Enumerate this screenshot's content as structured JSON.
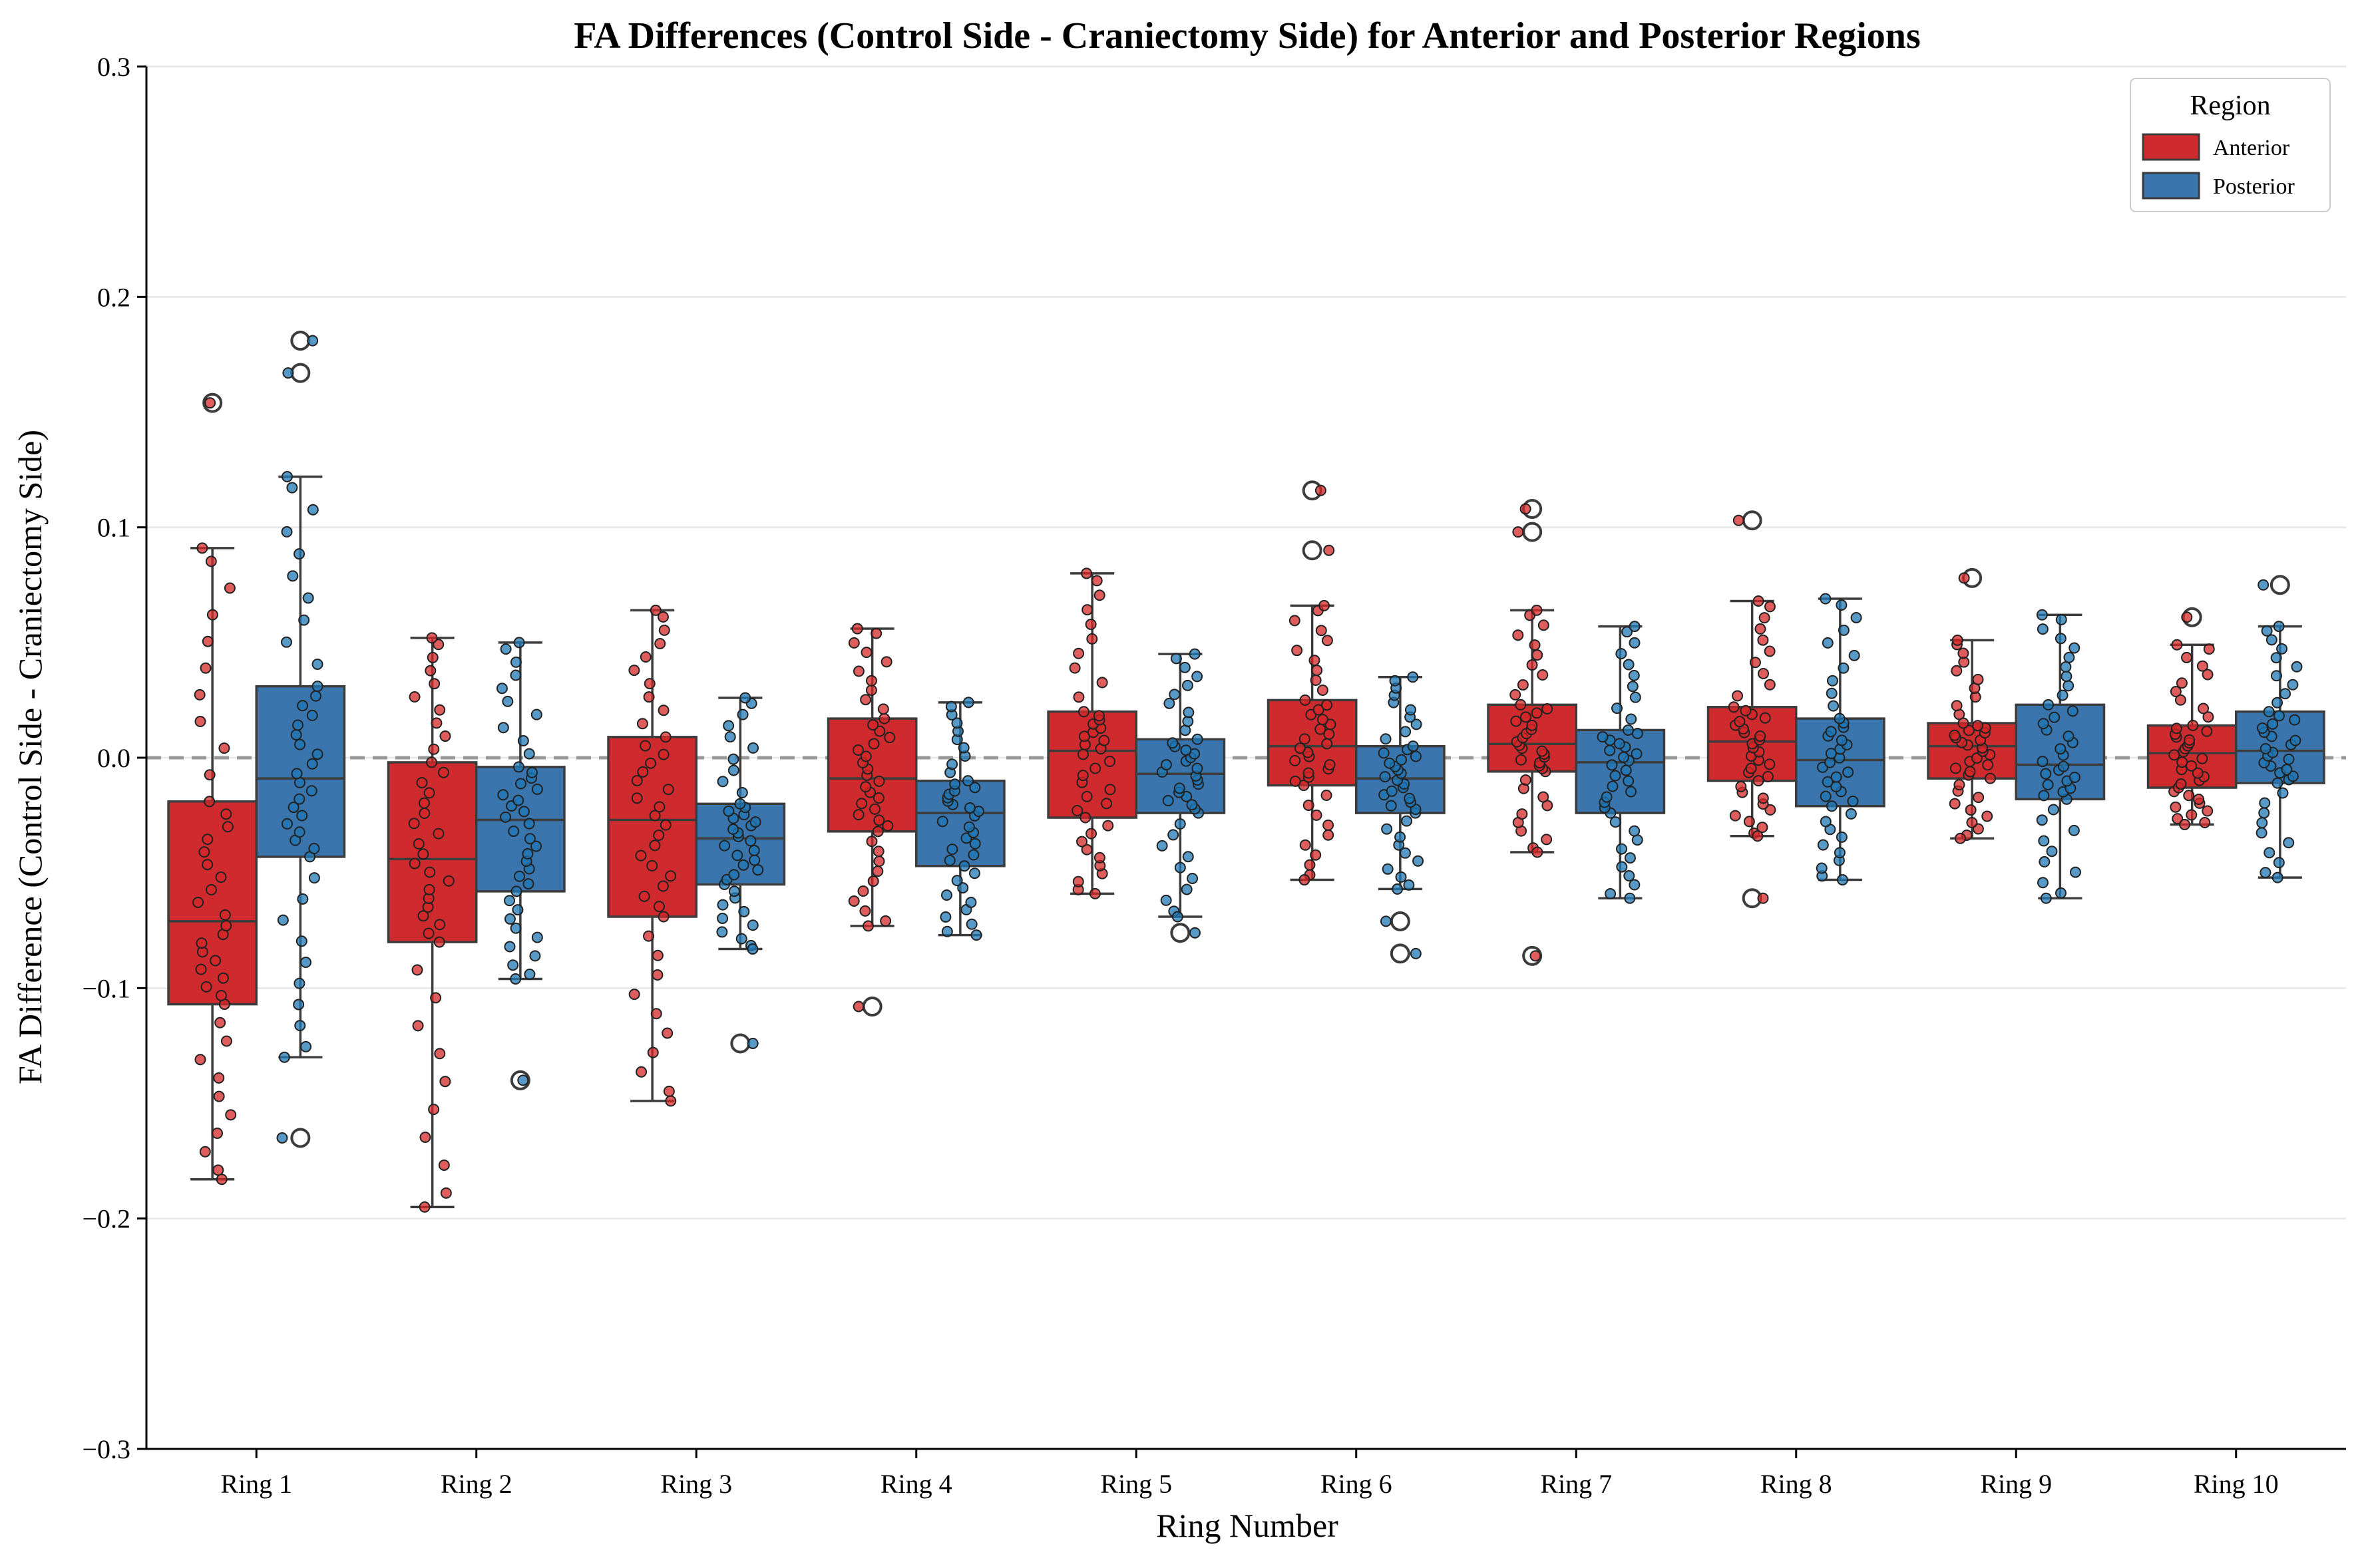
{
  "chart_data": {
    "type": "box",
    "title": "FA Differences (Control Side - Craniectomy Side) for Anterior and Posterior Regions",
    "xlabel": "Ring Number",
    "ylabel": "FA Difference (Control Side - Craniectomy Side)",
    "ylim": [
      -0.3,
      0.3
    ],
    "yticks": [
      -0.3,
      -0.2,
      -0.1,
      0.0,
      0.1,
      0.2,
      0.3
    ],
    "ytick_labels": [
      "−0.3",
      "−0.2",
      "−0.1",
      "0.0",
      "0.1",
      "0.2",
      "0.3"
    ],
    "grid": "horizontal",
    "reference_line": 0.0,
    "categories": [
      "Ring 1",
      "Ring 2",
      "Ring 3",
      "Ring 4",
      "Ring 5",
      "Ring 6",
      "Ring 7",
      "Ring 8",
      "Ring 9",
      "Ring 10"
    ],
    "legend": {
      "title": "Region",
      "position": "top-right"
    },
    "series": [
      {
        "name": "Anterior",
        "color": "#d62728",
        "box_color": "#cf2a2e",
        "boxes": [
          {
            "whislo": -0.183,
            "q1": -0.107,
            "med": -0.071,
            "q3": -0.019,
            "whishi": 0.091,
            "fliers": [
              0.154
            ]
          },
          {
            "whislo": -0.195,
            "q1": -0.08,
            "med": -0.044,
            "q3": -0.002,
            "whishi": 0.052,
            "fliers": []
          },
          {
            "whislo": -0.149,
            "q1": -0.069,
            "med": -0.027,
            "q3": 0.009,
            "whishi": 0.064,
            "fliers": []
          },
          {
            "whislo": -0.073,
            "q1": -0.032,
            "med": -0.009,
            "q3": 0.017,
            "whishi": 0.056,
            "fliers": [
              -0.108
            ]
          },
          {
            "whislo": -0.059,
            "q1": -0.026,
            "med": 0.003,
            "q3": 0.02,
            "whishi": 0.08,
            "fliers": []
          },
          {
            "whislo": -0.053,
            "q1": -0.012,
            "med": 0.005,
            "q3": 0.025,
            "whishi": 0.066,
            "fliers": [
              0.116,
              0.09
            ]
          },
          {
            "whislo": -0.041,
            "q1": -0.006,
            "med": 0.006,
            "q3": 0.023,
            "whishi": 0.064,
            "fliers": [
              0.108,
              0.098,
              -0.086
            ]
          },
          {
            "whislo": -0.034,
            "q1": -0.01,
            "med": 0.007,
            "q3": 0.022,
            "whishi": 0.068,
            "fliers": [
              0.103,
              -0.061
            ]
          },
          {
            "whislo": -0.035,
            "q1": -0.009,
            "med": 0.005,
            "q3": 0.015,
            "whishi": 0.051,
            "fliers": [
              0.078
            ]
          },
          {
            "whislo": -0.029,
            "q1": -0.013,
            "med": 0.002,
            "q3": 0.014,
            "whishi": 0.049,
            "fliers": [
              0.061
            ]
          }
        ]
      },
      {
        "name": "Posterior",
        "color": "#1f77b4",
        "box_color": "#3a75ae",
        "boxes": [
          {
            "whislo": -0.13,
            "q1": -0.043,
            "med": -0.009,
            "q3": 0.031,
            "whishi": 0.122,
            "fliers": [
              0.181,
              0.167,
              -0.165
            ]
          },
          {
            "whislo": -0.096,
            "q1": -0.058,
            "med": -0.027,
            "q3": -0.004,
            "whishi": 0.05,
            "fliers": [
              -0.14
            ]
          },
          {
            "whislo": -0.083,
            "q1": -0.055,
            "med": -0.035,
            "q3": -0.02,
            "whishi": 0.026,
            "fliers": [
              -0.124
            ]
          },
          {
            "whislo": -0.077,
            "q1": -0.047,
            "med": -0.024,
            "q3": -0.01,
            "whishi": 0.024,
            "fliers": []
          },
          {
            "whislo": -0.069,
            "q1": -0.024,
            "med": -0.007,
            "q3": 0.008,
            "whishi": 0.045,
            "fliers": [
              -0.076
            ]
          },
          {
            "whislo": -0.057,
            "q1": -0.024,
            "med": -0.009,
            "q3": 0.005,
            "whishi": 0.035,
            "fliers": [
              -0.071,
              -0.085
            ]
          },
          {
            "whislo": -0.061,
            "q1": -0.024,
            "med": -0.002,
            "q3": 0.012,
            "whishi": 0.057,
            "fliers": []
          },
          {
            "whislo": -0.053,
            "q1": -0.021,
            "med": -0.001,
            "q3": 0.017,
            "whishi": 0.069,
            "fliers": []
          },
          {
            "whislo": -0.061,
            "q1": -0.018,
            "med": -0.003,
            "q3": 0.023,
            "whishi": 0.062,
            "fliers": []
          },
          {
            "whislo": -0.052,
            "q1": -0.011,
            "med": 0.003,
            "q3": 0.02,
            "whishi": 0.057,
            "fliers": [
              0.075
            ]
          }
        ]
      }
    ]
  }
}
